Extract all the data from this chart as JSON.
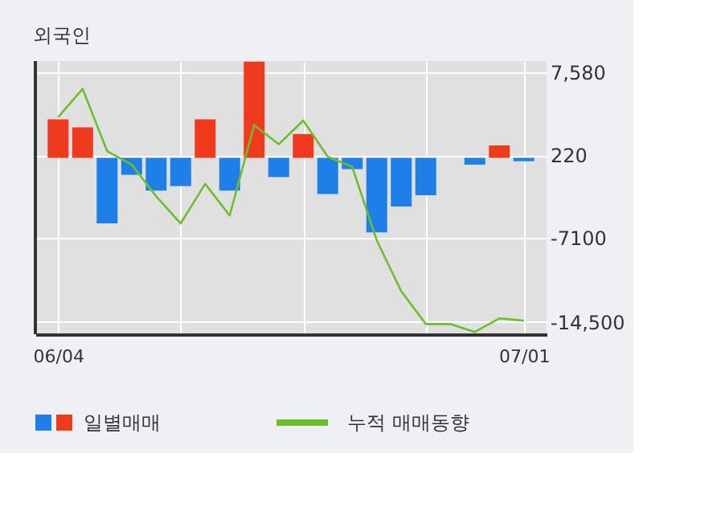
{
  "chart_data": {
    "type": "bar",
    "title": "외국인",
    "categories": [
      "06/04",
      null,
      null,
      null,
      null,
      null,
      null,
      null,
      null,
      null,
      null,
      null,
      null,
      null,
      null,
      null,
      null,
      null,
      null,
      "07/01"
    ],
    "series": [
      {
        "name": "일별매매",
        "colors": [
          "#f03a1e",
          "#f03a1e",
          "#1f7fe8",
          "#1f7fe8",
          "#1f7fe8",
          "#1f7fe8",
          "#f03a1e",
          "#1f7fe8",
          "#f03a1e",
          "#1f7fe8",
          "#f03a1e",
          "#1f7fe8",
          "#1f7fe8",
          "#1f7fe8",
          "#1f7fe8",
          "#1f7fe8",
          "#1f7fe8",
          "#1f7fe8",
          "#f03a1e",
          "#1f7fe8"
        ],
        "values": [
          3400,
          2700,
          -5800,
          -1500,
          -2900,
          -2500,
          3400,
          -2900,
          8500,
          -1700,
          2100,
          -3200,
          -1000,
          -6600,
          -4300,
          -3300,
          null,
          -600,
          1100,
          -300
        ]
      },
      {
        "name": "누적 매매동향",
        "type": "line",
        "color": "#6cbf2a",
        "values": [
          3600,
          6100,
          600,
          -600,
          -3400,
          -5800,
          -2300,
          -5100,
          2900,
          1200,
          3300,
          100,
          -800,
          -7300,
          -11800,
          -14700,
          -14700,
          -15400,
          -14200,
          -14400
        ]
      }
    ],
    "ylim": [
      -15600,
      8560
    ],
    "yticks": [
      {
        "value": 7580,
        "label": "7,580"
      },
      {
        "value": 220,
        "label": "220"
      },
      {
        "value": -7100,
        "label": "-7100"
      },
      {
        "value": -14500,
        "label": "-14,500"
      }
    ],
    "grid": true,
    "legend": "bottom"
  }
}
